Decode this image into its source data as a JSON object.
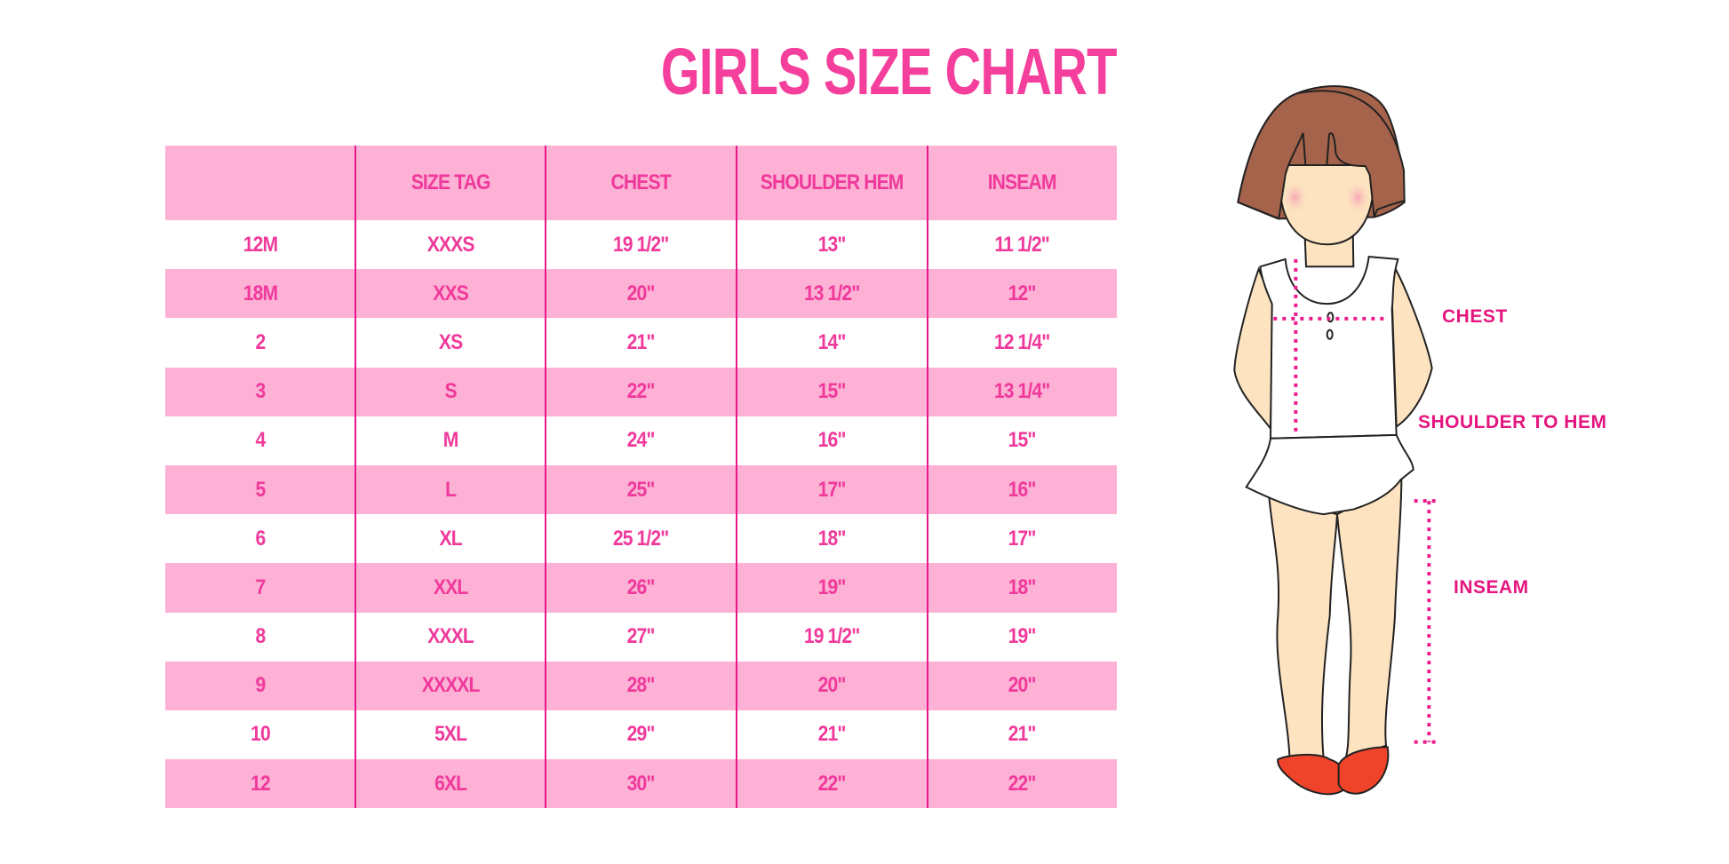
{
  "title": "GIRLS SIZE CHART",
  "table": {
    "headers": [
      "",
      "SIZE TAG",
      "CHEST",
      "SHOULDER HEM",
      "INSEAM"
    ],
    "rows": [
      [
        "12M",
        "XXXS",
        "19 1/2\"",
        "13\"",
        "11 1/2\""
      ],
      [
        "18M",
        "XXS",
        "20\"",
        "13 1/2\"",
        "12\""
      ],
      [
        "2",
        "XS",
        "21\"",
        "14\"",
        "12 1/4\""
      ],
      [
        "3",
        "S",
        "22\"",
        "15\"",
        "13 1/4\""
      ],
      [
        "4",
        "M",
        "24\"",
        "16\"",
        "15\""
      ],
      [
        "5",
        "L",
        "25\"",
        "17\"",
        "16\""
      ],
      [
        "6",
        "XL",
        "25 1/2\"",
        "18\"",
        "17\""
      ],
      [
        "7",
        "XXL",
        "26\"",
        "19\"",
        "18\""
      ],
      [
        "8",
        "XXXL",
        "27\"",
        "19 1/2\"",
        "19\""
      ],
      [
        "9",
        "XXXXL",
        "28\"",
        "20\"",
        "20\""
      ],
      [
        "10",
        "5XL",
        "29\"",
        "21\"",
        "21\""
      ],
      [
        "12",
        "6XL",
        "30\"",
        "22\"",
        "22\""
      ]
    ]
  },
  "figure": {
    "labels": {
      "chest": "CHEST",
      "shoulder_to_hem": "SHOULDER TO HEM",
      "inseam": "INSEAM"
    }
  },
  "colors": {
    "accent": "#f0399b",
    "header_bg": "#fcb1d5",
    "divider": "#e8178a",
    "label": "#e5157f"
  }
}
